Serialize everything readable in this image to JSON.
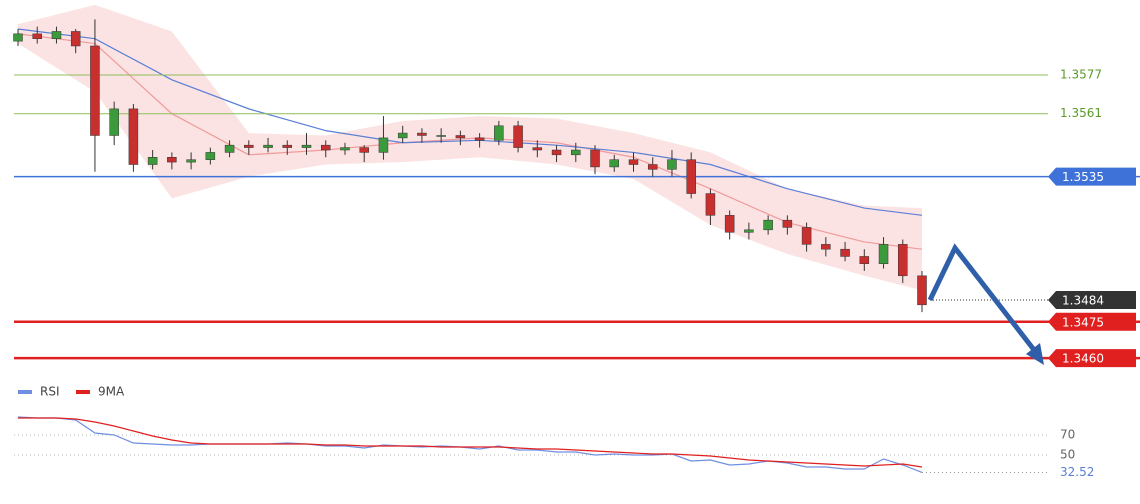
{
  "chart_data": {
    "type": "candlestick",
    "ylim": [
      1.3453,
      1.3608
    ],
    "candles": {
      "open": [
        1.3591,
        1.3594,
        1.3592,
        1.3595,
        1.3589,
        1.3552,
        1.3563,
        1.354,
        1.3543,
        1.3541,
        1.3542,
        1.3545,
        1.3548,
        1.3547,
        1.3548,
        1.3547,
        1.3548,
        1.3546,
        1.3547,
        1.3545,
        1.3551,
        1.3553,
        1.3552,
        1.3552,
        1.3551,
        1.355,
        1.3556,
        1.3547,
        1.3546,
        1.3544,
        1.3546,
        1.3539,
        1.3542,
        1.354,
        1.3538,
        1.3542,
        1.3528,
        1.3519,
        1.3512,
        1.3513,
        1.3517,
        1.3514,
        1.3507,
        1.3505,
        1.3502,
        1.3499,
        1.3507,
        1.3494
      ],
      "close": [
        1.3594,
        1.3592,
        1.3595,
        1.3589,
        1.3552,
        1.3563,
        1.354,
        1.3543,
        1.3541,
        1.3542,
        1.3545,
        1.3548,
        1.3547,
        1.3548,
        1.3547,
        1.3548,
        1.3546,
        1.3547,
        1.3545,
        1.3551,
        1.3553,
        1.3552,
        1.3552,
        1.3551,
        1.355,
        1.3556,
        1.3547,
        1.3546,
        1.3544,
        1.3546,
        1.3539,
        1.3542,
        1.354,
        1.3538,
        1.3542,
        1.3528,
        1.3519,
        1.3512,
        1.3513,
        1.3517,
        1.3514,
        1.3507,
        1.3505,
        1.3502,
        1.3499,
        1.3507,
        1.3494,
        1.3482
      ],
      "high": [
        1.3596,
        1.3597,
        1.3597,
        1.3596,
        1.36,
        1.3566,
        1.3565,
        1.3546,
        1.3545,
        1.3545,
        1.3547,
        1.355,
        1.355,
        1.3551,
        1.355,
        1.3553,
        1.355,
        1.3549,
        1.3548,
        1.356,
        1.3556,
        1.3555,
        1.3555,
        1.3554,
        1.3553,
        1.3558,
        1.3558,
        1.355,
        1.3548,
        1.3549,
        1.3548,
        1.3544,
        1.3545,
        1.3543,
        1.3546,
        1.3545,
        1.353,
        1.3521,
        1.3516,
        1.3519,
        1.3519,
        1.3516,
        1.351,
        1.3508,
        1.3505,
        1.351,
        1.3509,
        1.3496
      ],
      "low": [
        1.3589,
        1.359,
        1.359,
        1.3586,
        1.3537,
        1.3548,
        1.3537,
        1.3538,
        1.3538,
        1.3538,
        1.354,
        1.3543,
        1.3544,
        1.3545,
        1.3544,
        1.3544,
        1.3543,
        1.3544,
        1.3541,
        1.3542,
        1.3549,
        1.3549,
        1.3549,
        1.3548,
        1.3547,
        1.3548,
        1.3545,
        1.3543,
        1.3541,
        1.3541,
        1.3536,
        1.3537,
        1.3537,
        1.3535,
        1.3535,
        1.3526,
        1.3515,
        1.3509,
        1.3509,
        1.3511,
        1.3511,
        1.3504,
        1.3502,
        1.35,
        1.3496,
        1.3497,
        1.3491,
        1.3479
      ],
      "up_color": "#3c9a3c",
      "down_color": "#c8302f"
    },
    "bands": {
      "x": [
        0,
        4,
        8,
        12,
        16,
        20,
        24,
        28,
        32,
        36,
        40,
        44,
        47
      ],
      "upper": [
        1.3598,
        1.3606,
        1.3595,
        1.3553,
        1.3552,
        1.3558,
        1.356,
        1.3559,
        1.3553,
        1.3545,
        1.353,
        1.3523,
        1.3522
      ],
      "lower": [
        1.359,
        1.357,
        1.3526,
        1.3535,
        1.354,
        1.3541,
        1.3543,
        1.354,
        1.3534,
        1.3515,
        1.3503,
        1.3494,
        1.3488
      ],
      "middle": [
        1.3594,
        1.359,
        1.3561,
        1.3544,
        1.3546,
        1.3549,
        1.3551,
        1.3549,
        1.3543,
        1.353,
        1.3516,
        1.3508,
        1.3505
      ],
      "ma": [
        1.3596,
        1.3592,
        1.3575,
        1.3563,
        1.3554,
        1.3549,
        1.355,
        1.3548,
        1.3545,
        1.354,
        1.353,
        1.3522,
        1.3519
      ],
      "fill_color": "#fbd9d9",
      "middle_color": "#f09a9a",
      "ma_color": "#5b7fd6"
    },
    "levels": [
      {
        "value": 1.3577,
        "color": "#8dbf5a",
        "kind": "guide"
      },
      {
        "value": 1.3561,
        "color": "#8dbf5a",
        "kind": "guide"
      },
      {
        "value": 1.3535,
        "color": "#3f72d8",
        "kind": "box"
      },
      {
        "value": 1.3484,
        "color": "#333333",
        "kind": "current"
      },
      {
        "value": 1.3475,
        "color": "#e01f1f",
        "kind": "box"
      },
      {
        "value": {
          "value": 1.346,
          "label": "1.3460"
        },
        "color": "#e01f1f",
        "kind": "box"
      }
    ],
    "rsi": {
      "ylim": [
        15,
        105
      ],
      "yticks": [
        70,
        50
      ],
      "series": [
        {
          "name": "RSI",
          "color": "#6f8fe0",
          "values": [
            88,
            87,
            87,
            85,
            72,
            70,
            62,
            61,
            60,
            60,
            61,
            61,
            61,
            61,
            62,
            61,
            59,
            59,
            57,
            60,
            59,
            58,
            59,
            58,
            56,
            59,
            55,
            55,
            53,
            53,
            50,
            51,
            50,
            50,
            51,
            44,
            45,
            40,
            41,
            44,
            42,
            38,
            38,
            36,
            36,
            46,
            40,
            32.52
          ]
        },
        {
          "name": "9MA",
          "color": "#e01f1f",
          "values": [
            87,
            87,
            87,
            86,
            83,
            79,
            74,
            69,
            65,
            62,
            61,
            61,
            61,
            61,
            61,
            61,
            60,
            60,
            59,
            59,
            59,
            59,
            58,
            58,
            58,
            58,
            57,
            56,
            56,
            55,
            54,
            53,
            52,
            51,
            51,
            50,
            49,
            47,
            45,
            44,
            43,
            42,
            41,
            40,
            39,
            40,
            41,
            38
          ]
        }
      ]
    }
  }
}
